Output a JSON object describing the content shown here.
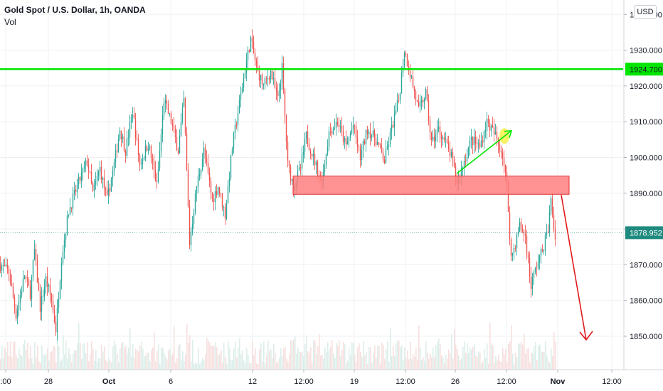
{
  "header": {
    "symbol_title": "Gold Spot / U.S. Dollar, 1h, OANDA",
    "volume_label": "Vol"
  },
  "currency_button": "USD",
  "colors": {
    "up_candle": "#26a69a",
    "down_candle": "#ef5350",
    "resistance_line": "#00e600",
    "resistance_badge": "#00e600",
    "current_price_badge": "#1f8a7f",
    "support_zone_fill": "#ff7f7f",
    "support_zone_stroke": "#e03434",
    "trend_arrow": "#00e600",
    "projection_arrow": "#e01b1b",
    "highlight_circle": "#f8f04a"
  },
  "chart_data": {
    "type": "candlestick",
    "title": "Gold Spot / U.S. Dollar, 1h, OANDA",
    "ylim": [
      1841,
      1962
    ],
    "price_ticks": [
      1850,
      1860,
      1870,
      1880,
      1890,
      1900,
      1910,
      1920,
      1930,
      1940
    ],
    "price_tick_labels": [
      "1850.000",
      "1860.000",
      "1870.000",
      "1880.000",
      "1890.000",
      "1900.000",
      "1910.000",
      "1920.000",
      "1930.000",
      "1940.000"
    ],
    "time_labels": [
      {
        "label": ":00",
        "bold": false
      },
      {
        "label": "28",
        "bold": false
      },
      {
        "label": "Oct",
        "bold": true
      },
      {
        "label": "6",
        "bold": false
      },
      {
        "label": "12",
        "bold": false
      },
      {
        "label": "12:00",
        "bold": false
      },
      {
        "label": "19",
        "bold": false
      },
      {
        "label": "12:00",
        "bold": false
      },
      {
        "label": "26",
        "bold": false
      },
      {
        "label": "12:00",
        "bold": false
      },
      {
        "label": "Nov",
        "bold": true
      },
      {
        "label": "12:00",
        "bold": false
      }
    ],
    "price_path": [
      [
        0,
        1870
      ],
      [
        12,
        1868
      ],
      [
        22,
        1856
      ],
      [
        34,
        1867
      ],
      [
        42,
        1862
      ],
      [
        48,
        1874
      ],
      [
        56,
        1858
      ],
      [
        64,
        1866
      ],
      [
        72,
        1860
      ],
      [
        78,
        1852
      ],
      [
        86,
        1872
      ],
      [
        96,
        1885
      ],
      [
        110,
        1893
      ],
      [
        122,
        1899
      ],
      [
        130,
        1890
      ],
      [
        140,
        1897
      ],
      [
        150,
        1888
      ],
      [
        160,
        1898
      ],
      [
        168,
        1908
      ],
      [
        176,
        1902
      ],
      [
        186,
        1913
      ],
      [
        196,
        1898
      ],
      [
        208,
        1904
      ],
      [
        220,
        1892
      ],
      [
        230,
        1916
      ],
      [
        240,
        1910
      ],
      [
        250,
        1902
      ],
      [
        258,
        1916
      ],
      [
        266,
        1876
      ],
      [
        276,
        1892
      ],
      [
        286,
        1902
      ],
      [
        298,
        1888
      ],
      [
        306,
        1892
      ],
      [
        316,
        1884
      ],
      [
        326,
        1903
      ],
      [
        336,
        1915
      ],
      [
        346,
        1927
      ],
      [
        352,
        1933
      ],
      [
        360,
        1925
      ],
      [
        370,
        1920
      ],
      [
        380,
        1924
      ],
      [
        390,
        1916
      ],
      [
        396,
        1925
      ],
      [
        404,
        1898
      ],
      [
        412,
        1892
      ],
      [
        422,
        1897
      ],
      [
        430,
        1906
      ],
      [
        440,
        1900
      ],
      [
        452,
        1893
      ],
      [
        462,
        1907
      ],
      [
        474,
        1910
      ],
      [
        486,
        1903
      ],
      [
        496,
        1909
      ],
      [
        506,
        1900
      ],
      [
        516,
        1908
      ],
      [
        528,
        1905
      ],
      [
        540,
        1899
      ],
      [
        550,
        1908
      ],
      [
        560,
        1916
      ],
      [
        568,
        1930
      ],
      [
        578,
        1922
      ],
      [
        588,
        1913
      ],
      [
        598,
        1918
      ],
      [
        606,
        1904
      ],
      [
        616,
        1908
      ],
      [
        626,
        1904
      ],
      [
        634,
        1900
      ],
      [
        642,
        1893
      ],
      [
        652,
        1899
      ],
      [
        662,
        1905
      ],
      [
        674,
        1903
      ],
      [
        684,
        1910
      ],
      [
        696,
        1906
      ],
      [
        706,
        1901
      ],
      [
        712,
        1892
      ],
      [
        718,
        1872
      ],
      [
        724,
        1876
      ],
      [
        730,
        1881
      ],
      [
        738,
        1878
      ],
      [
        746,
        1864
      ],
      [
        754,
        1870
      ],
      [
        762,
        1874
      ],
      [
        770,
        1880
      ],
      [
        774,
        1888
      ],
      [
        780,
        1877
      ]
    ],
    "annotations": {
      "resistance_level": 1924.7,
      "resistance_label": "1924.700",
      "current_price": 1878.952,
      "current_price_label": "1878.952",
      "support_zone": [
        1889.7,
        1894.8
      ],
      "trend_arrow_from": 1895.5,
      "trend_arrow_to": 1907.5,
      "projection_arrow_from": 1889.5,
      "projection_arrow_to": 1849.0
    }
  }
}
